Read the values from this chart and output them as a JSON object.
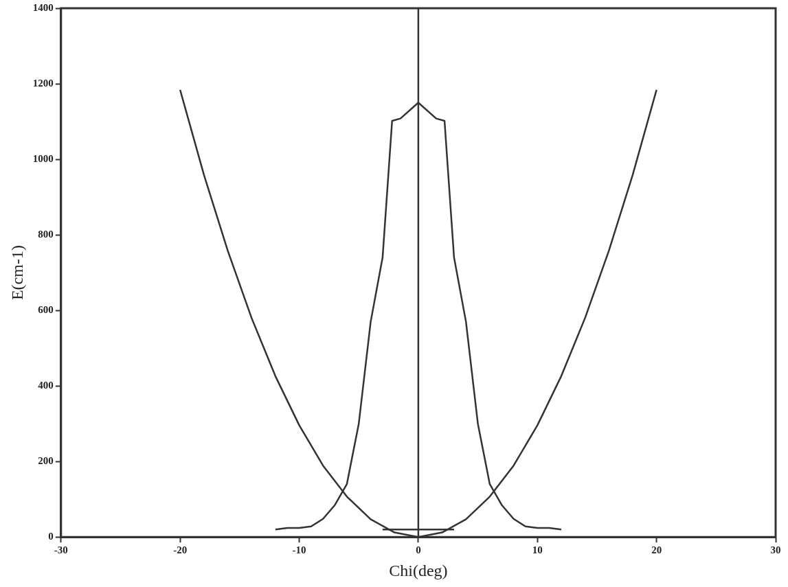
{
  "chart_data": {
    "type": "line",
    "xlabel": "Chi(deg)",
    "ylabel": "E(cm-1)",
    "xlim": [
      -30,
      30
    ],
    "xticks": [
      -30,
      -20,
      -10,
      0,
      10,
      20,
      30
    ],
    "ylim": [
      0,
      1400
    ],
    "yticks": [
      0,
      200,
      400,
      600,
      800,
      1000,
      1200,
      1400
    ],
    "grid": false,
    "legend": false,
    "marker": "none",
    "line_style": "solid",
    "series": [
      {
        "color": "#333333",
        "x": [
          -20,
          -18,
          -16,
          -14,
          -12,
          -10,
          -8,
          -6,
          -4,
          -2,
          0,
          2,
          4,
          6,
          8,
          10,
          12,
          14,
          16,
          18,
          20
        ],
        "values": [
          1184,
          959,
          758,
          580,
          426,
          296,
          189,
          107,
          47,
          12,
          0,
          12,
          47,
          107,
          189,
          296,
          426,
          580,
          758,
          959,
          1184
        ]
      },
      {
        "color": "#333333",
        "x": [
          -12,
          -11,
          -10,
          -9,
          -8,
          -7,
          -6,
          -5,
          -4,
          -3,
          -2.2,
          -1.5,
          0,
          1.5,
          2.2,
          3,
          4,
          5,
          6,
          7,
          8,
          9,
          10,
          11,
          12
        ],
        "values": [
          20,
          24,
          24,
          28,
          48,
          85,
          140,
          300,
          570,
          740,
          1102,
          1108,
          1150,
          1108,
          1102,
          740,
          570,
          300,
          140,
          85,
          48,
          28,
          24,
          24,
          20
        ]
      },
      {
        "color": "#333333",
        "x": [
          -3,
          3
        ],
        "values": [
          20,
          20
        ]
      }
    ],
    "ref_lines": [
      {
        "axis": "x",
        "value": 0,
        "color": "#333333"
      }
    ]
  }
}
